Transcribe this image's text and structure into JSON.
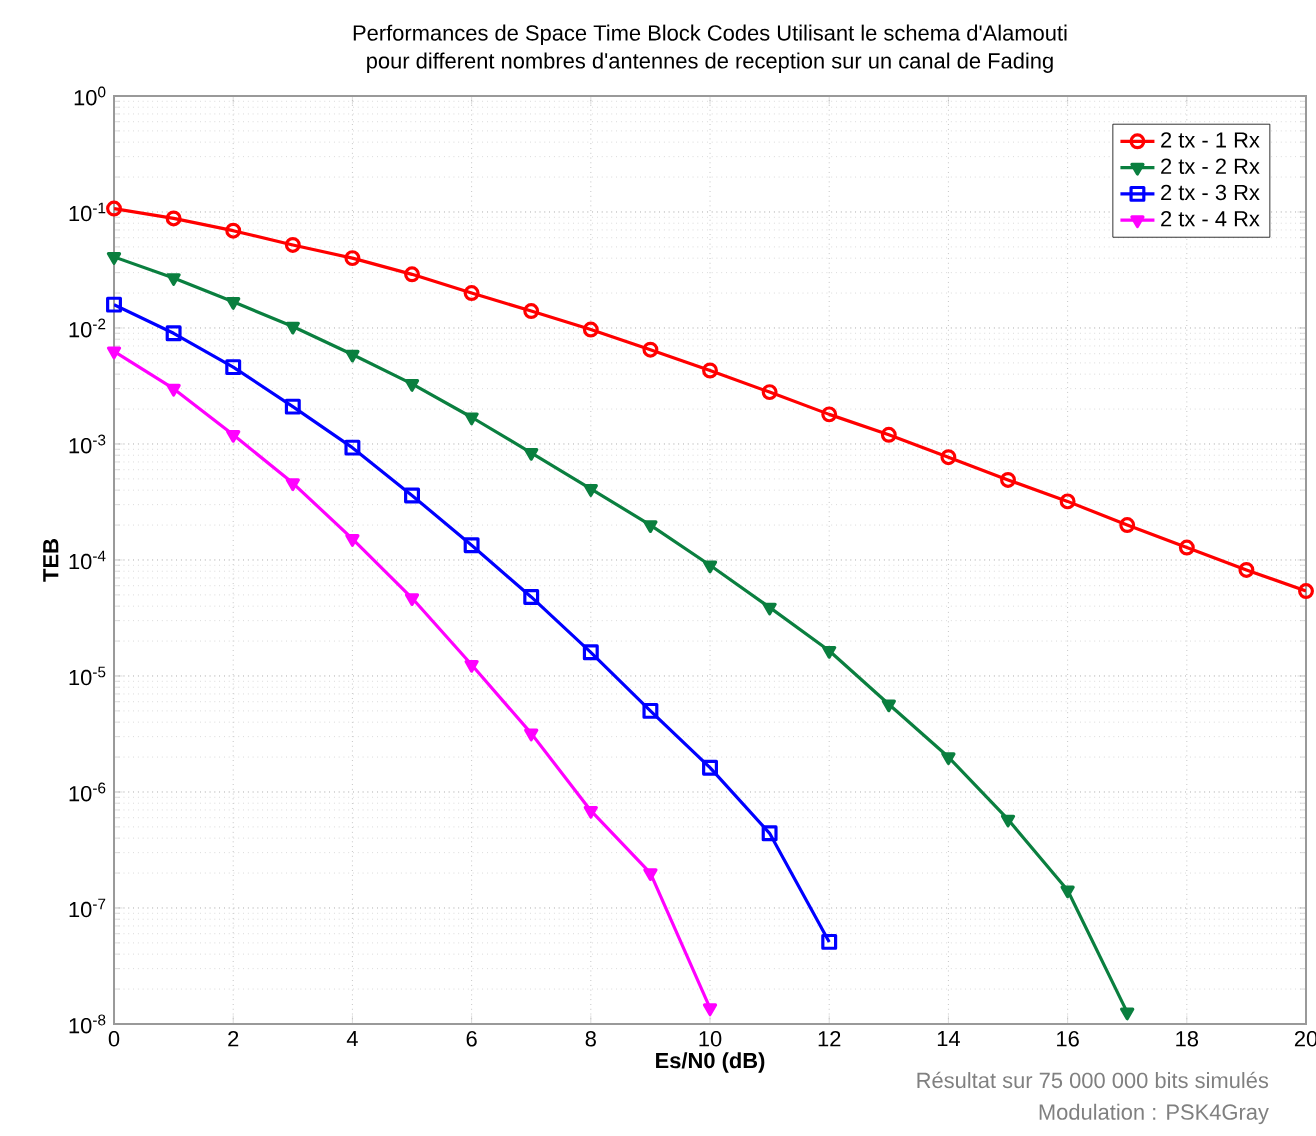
{
  "chart_data": {
    "type": "line",
    "title": "Performances de Space Time Block Codes Utilisant le schema d'Alamouti",
    "subtitle": "pour different nombres d'antennes de reception sur un canal de Fading",
    "xlabel": "Es/N0 (dB)",
    "ylabel": "TEB",
    "log": "y",
    "grid": true,
    "legend": "top right",
    "line_style": "solid",
    "xlim": [
      0,
      20
    ],
    "xticks": [
      0,
      2,
      4,
      6,
      8,
      10,
      12,
      14,
      16,
      18,
      20
    ],
    "ylim": [
      1e-08,
      1
    ],
    "yticks": [
      {
        "value": 1e-08,
        "label": "10$^{-8}$"
      },
      {
        "value": 1e-07,
        "label": "10$^{-7}$"
      },
      {
        "value": 1e-06,
        "label": "10$^{-6}$"
      },
      {
        "value": 1e-05,
        "label": "10$^{-5}$"
      },
      {
        "value": 0.0001,
        "label": "10$^{-4}$"
      },
      {
        "value": 0.001,
        "label": "10$^{-3}$"
      },
      {
        "value": 0.01,
        "label": "10$^{-2}$"
      },
      {
        "value": 0.1,
        "label": "10$^{-1}$"
      },
      {
        "value": 1,
        "label": "10$^{0}$"
      }
    ],
    "series": [
      {
        "name": "2 tx - 1 Rx",
        "color": "#ff0000",
        "marker": "circle",
        "x": [
          0,
          1,
          2,
          3,
          4,
          5,
          6,
          7,
          8,
          9,
          10,
          11,
          12,
          13,
          14,
          15,
          16,
          17,
          18,
          19,
          20
        ],
        "values": [
          0.107,
          0.088,
          0.069,
          0.052,
          0.04,
          0.029,
          0.02,
          0.014,
          0.0097,
          0.0065,
          0.0043,
          0.0028,
          0.0018,
          0.0012,
          0.00077,
          0.00049,
          0.00032,
          0.0002,
          0.000128,
          8.2e-05,
          5.4e-05
        ]
      },
      {
        "name": "2 tx - 2 Rx",
        "color": "#0a7f3f",
        "marker": "triangle",
        "x": [
          0,
          1,
          2,
          3,
          4,
          5,
          6,
          7,
          8,
          9,
          10,
          11,
          12,
          13,
          14,
          15,
          16,
          17
        ],
        "values": [
          0.041,
          0.027,
          0.0168,
          0.0103,
          0.0059,
          0.0033,
          0.0017,
          0.00084,
          0.00041,
          0.0002,
          9e-05,
          3.9e-05,
          1.65e-05,
          5.7e-06,
          2e-06,
          5.8e-07,
          1.42e-07,
          1.26e-08
        ]
      },
      {
        "name": "2 tx - 3 Rx",
        "color": "#0000ff",
        "marker": "square",
        "x": [
          0,
          1,
          2,
          3,
          4,
          5,
          6,
          7,
          8,
          9,
          10,
          11,
          12
        ],
        "values": [
          0.0159,
          0.009,
          0.0046,
          0.0021,
          0.00093,
          0.00036,
          0.000134,
          4.8e-05,
          1.6e-05,
          5e-06,
          1.62e-06,
          4.4e-07,
          5.1e-08
        ]
      },
      {
        "name": "2 tx - 4 Rx",
        "color": "#ff00ff",
        "marker": "triangle",
        "x": [
          0,
          1,
          2,
          3,
          4,
          5,
          6,
          7,
          8,
          9,
          10
        ],
        "values": [
          0.0063,
          0.003,
          0.0012,
          0.00046,
          0.000152,
          4.7e-05,
          1.25e-05,
          3.2e-06,
          6.9e-07,
          2e-07,
          1.37e-08
        ]
      }
    ],
    "annotations": [
      "Résultat sur 75 000 000 bits simulés",
      "Modulation : PSK4Gray"
    ]
  }
}
